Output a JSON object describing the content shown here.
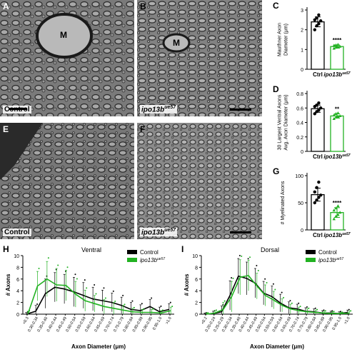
{
  "panels": {
    "A": {
      "letter": "A",
      "label": "Control",
      "marker": "M"
    },
    "B": {
      "letter": "B",
      "label": "ipo13b",
      "sup": "ue57",
      "marker": "M"
    },
    "E": {
      "letter": "E",
      "label": "Control"
    },
    "F": {
      "letter": "F",
      "label": "ipo13b",
      "sup": "ue57"
    }
  },
  "colors": {
    "control": "#000000",
    "mutant": "#22b222"
  },
  "chart_data": [
    {
      "panel": "C",
      "type": "bar",
      "ylabel": "Mauthner Axon Diameter (μm)",
      "categories": [
        "Ctrl",
        "ipo13bue57"
      ],
      "values": [
        2.4,
        1.15
      ],
      "errors": [
        0.25,
        0.08
      ],
      "ylim": [
        0,
        3
      ],
      "yticks": [
        0,
        1,
        2,
        3
      ],
      "significance": "****",
      "points": [
        [
          2.0,
          2.2,
          2.3,
          2.45,
          2.5,
          2.6,
          2.75
        ],
        [
          1.05,
          1.1,
          1.12,
          1.15,
          1.2,
          1.22,
          1.25
        ]
      ]
    },
    {
      "panel": "D",
      "type": "bar",
      "ylabel": "30 Largest Ventral Axons Avg. Axon Diameter (μm)",
      "categories": [
        "Ctrl",
        "ipo13bue57"
      ],
      "values": [
        0.59,
        0.49
      ],
      "errors": [
        0.05,
        0.03
      ],
      "ylim": [
        0,
        0.8
      ],
      "yticks": [
        0.0,
        0.2,
        0.4,
        0.6,
        0.8
      ],
      "significance": "**",
      "points": [
        [
          0.52,
          0.55,
          0.57,
          0.6,
          0.62,
          0.64,
          0.67
        ],
        [
          0.45,
          0.47,
          0.48,
          0.49,
          0.5,
          0.52,
          0.53
        ]
      ]
    },
    {
      "panel": "G",
      "type": "bar",
      "ylabel": "# Myelinated Axons",
      "categories": [
        "Ctrl",
        "ipo13bue57"
      ],
      "values": [
        65,
        32
      ],
      "errors": [
        12,
        9
      ],
      "ylim": [
        0,
        100
      ],
      "yticks": [
        0,
        50,
        100
      ],
      "significance": "****",
      "points": [
        [
          50,
          55,
          60,
          64,
          70,
          78,
          88
        ],
        [
          20,
          25,
          28,
          32,
          36,
          40,
          44
        ]
      ]
    },
    {
      "panel": "H",
      "type": "line",
      "title": "Ventral",
      "xlabel": "Axon Diameter (μm)",
      "ylabel": "# Axons",
      "categories": [
        "<0.3",
        "0.30-0.34",
        "0.35-0.40",
        "0.40-0.44",
        "0.45-0.49",
        "0.50-0.54",
        "0.55-0.59",
        "0.60-0.64",
        "0.65-0.69",
        "0.70-0.74",
        "0.75-0.79",
        "0.80-0.84",
        "0.85-0.89",
        "0.90-0.95",
        "0.95-1.0",
        ">1.0"
      ],
      "ylim": [
        0,
        10
      ],
      "yticks": [
        0,
        2,
        4,
        6,
        8,
        10
      ],
      "legend": [
        "Control",
        "ipo13bue57"
      ],
      "series": [
        {
          "name": "Control",
          "values": [
            0.0,
            0.5,
            3.5,
            4.6,
            4.3,
            3.8,
            3.2,
            2.6,
            2.3,
            2.0,
            1.5,
            0.8,
            0.6,
            1.3,
            0.4,
            0.8
          ],
          "errors": [
            0.3,
            1.0,
            2.5,
            2.5,
            2.5,
            2.5,
            2.2,
            2.0,
            1.8,
            1.6,
            1.4,
            1.2,
            1.0,
            1.2,
            0.8,
            1.0
          ]
        },
        {
          "name": "ipo13bue57",
          "values": [
            0.1,
            4.8,
            6.0,
            5.0,
            4.9,
            3.4,
            2.3,
            1.8,
            1.3,
            1.0,
            0.7,
            0.4,
            0.3,
            0.3,
            0.2,
            0.6
          ],
          "errors": [
            0.4,
            2.5,
            3.0,
            2.8,
            2.6,
            2.2,
            1.8,
            1.4,
            1.2,
            1.0,
            0.8,
            0.6,
            0.5,
            0.5,
            0.4,
            0.6
          ]
        }
      ]
    },
    {
      "panel": "I",
      "type": "line",
      "title": "Dorsal",
      "xlabel": "Axon Diameter (μm)",
      "ylabel": "# Axons",
      "categories": [
        "<0.2",
        "0.20-0.24",
        "0.25-0.29",
        "0.30-0.34",
        "0.35-0.40",
        "0.40-0.44",
        "0.45-0.49",
        "0.50-0.54",
        "0.55-0.59",
        "0.60-0.64",
        "0.65-0.69",
        "0.70-0.74",
        "0.75-0.79",
        "0.80-0.84",
        "0.85-0.89",
        "0.90-0.95",
        "0.95-1.0",
        ">1.0"
      ],
      "ylim": [
        0,
        10
      ],
      "yticks": [
        0,
        2,
        4,
        6,
        8,
        10
      ],
      "legend": [
        "Control",
        "ipo13bue57"
      ],
      "series": [
        {
          "name": "Control",
          "values": [
            0.0,
            0.1,
            0.4,
            3.2,
            6.5,
            6.1,
            5.3,
            3.6,
            3.0,
            1.9,
            1.1,
            0.9,
            0.5,
            0.4,
            0.2,
            0.2,
            0.1,
            0.3
          ],
          "errors": [
            0.2,
            0.4,
            1.0,
            2.5,
            3.0,
            2.8,
            2.5,
            2.0,
            1.8,
            1.5,
            1.0,
            0.8,
            0.6,
            0.5,
            0.4,
            0.3,
            0.3,
            0.4
          ]
        },
        {
          "name": "ipo13bue57",
          "values": [
            0.0,
            0.2,
            0.8,
            3.0,
            6.3,
            6.6,
            4.8,
            3.2,
            2.4,
            1.5,
            0.9,
            0.6,
            0.4,
            0.3,
            0.2,
            0.1,
            0.1,
            0.2
          ],
          "errors": [
            0.2,
            0.4,
            1.2,
            2.6,
            3.0,
            2.6,
            2.2,
            1.8,
            1.5,
            1.1,
            0.8,
            0.6,
            0.5,
            0.4,
            0.3,
            0.3,
            0.2,
            0.3
          ]
        }
      ]
    }
  ]
}
